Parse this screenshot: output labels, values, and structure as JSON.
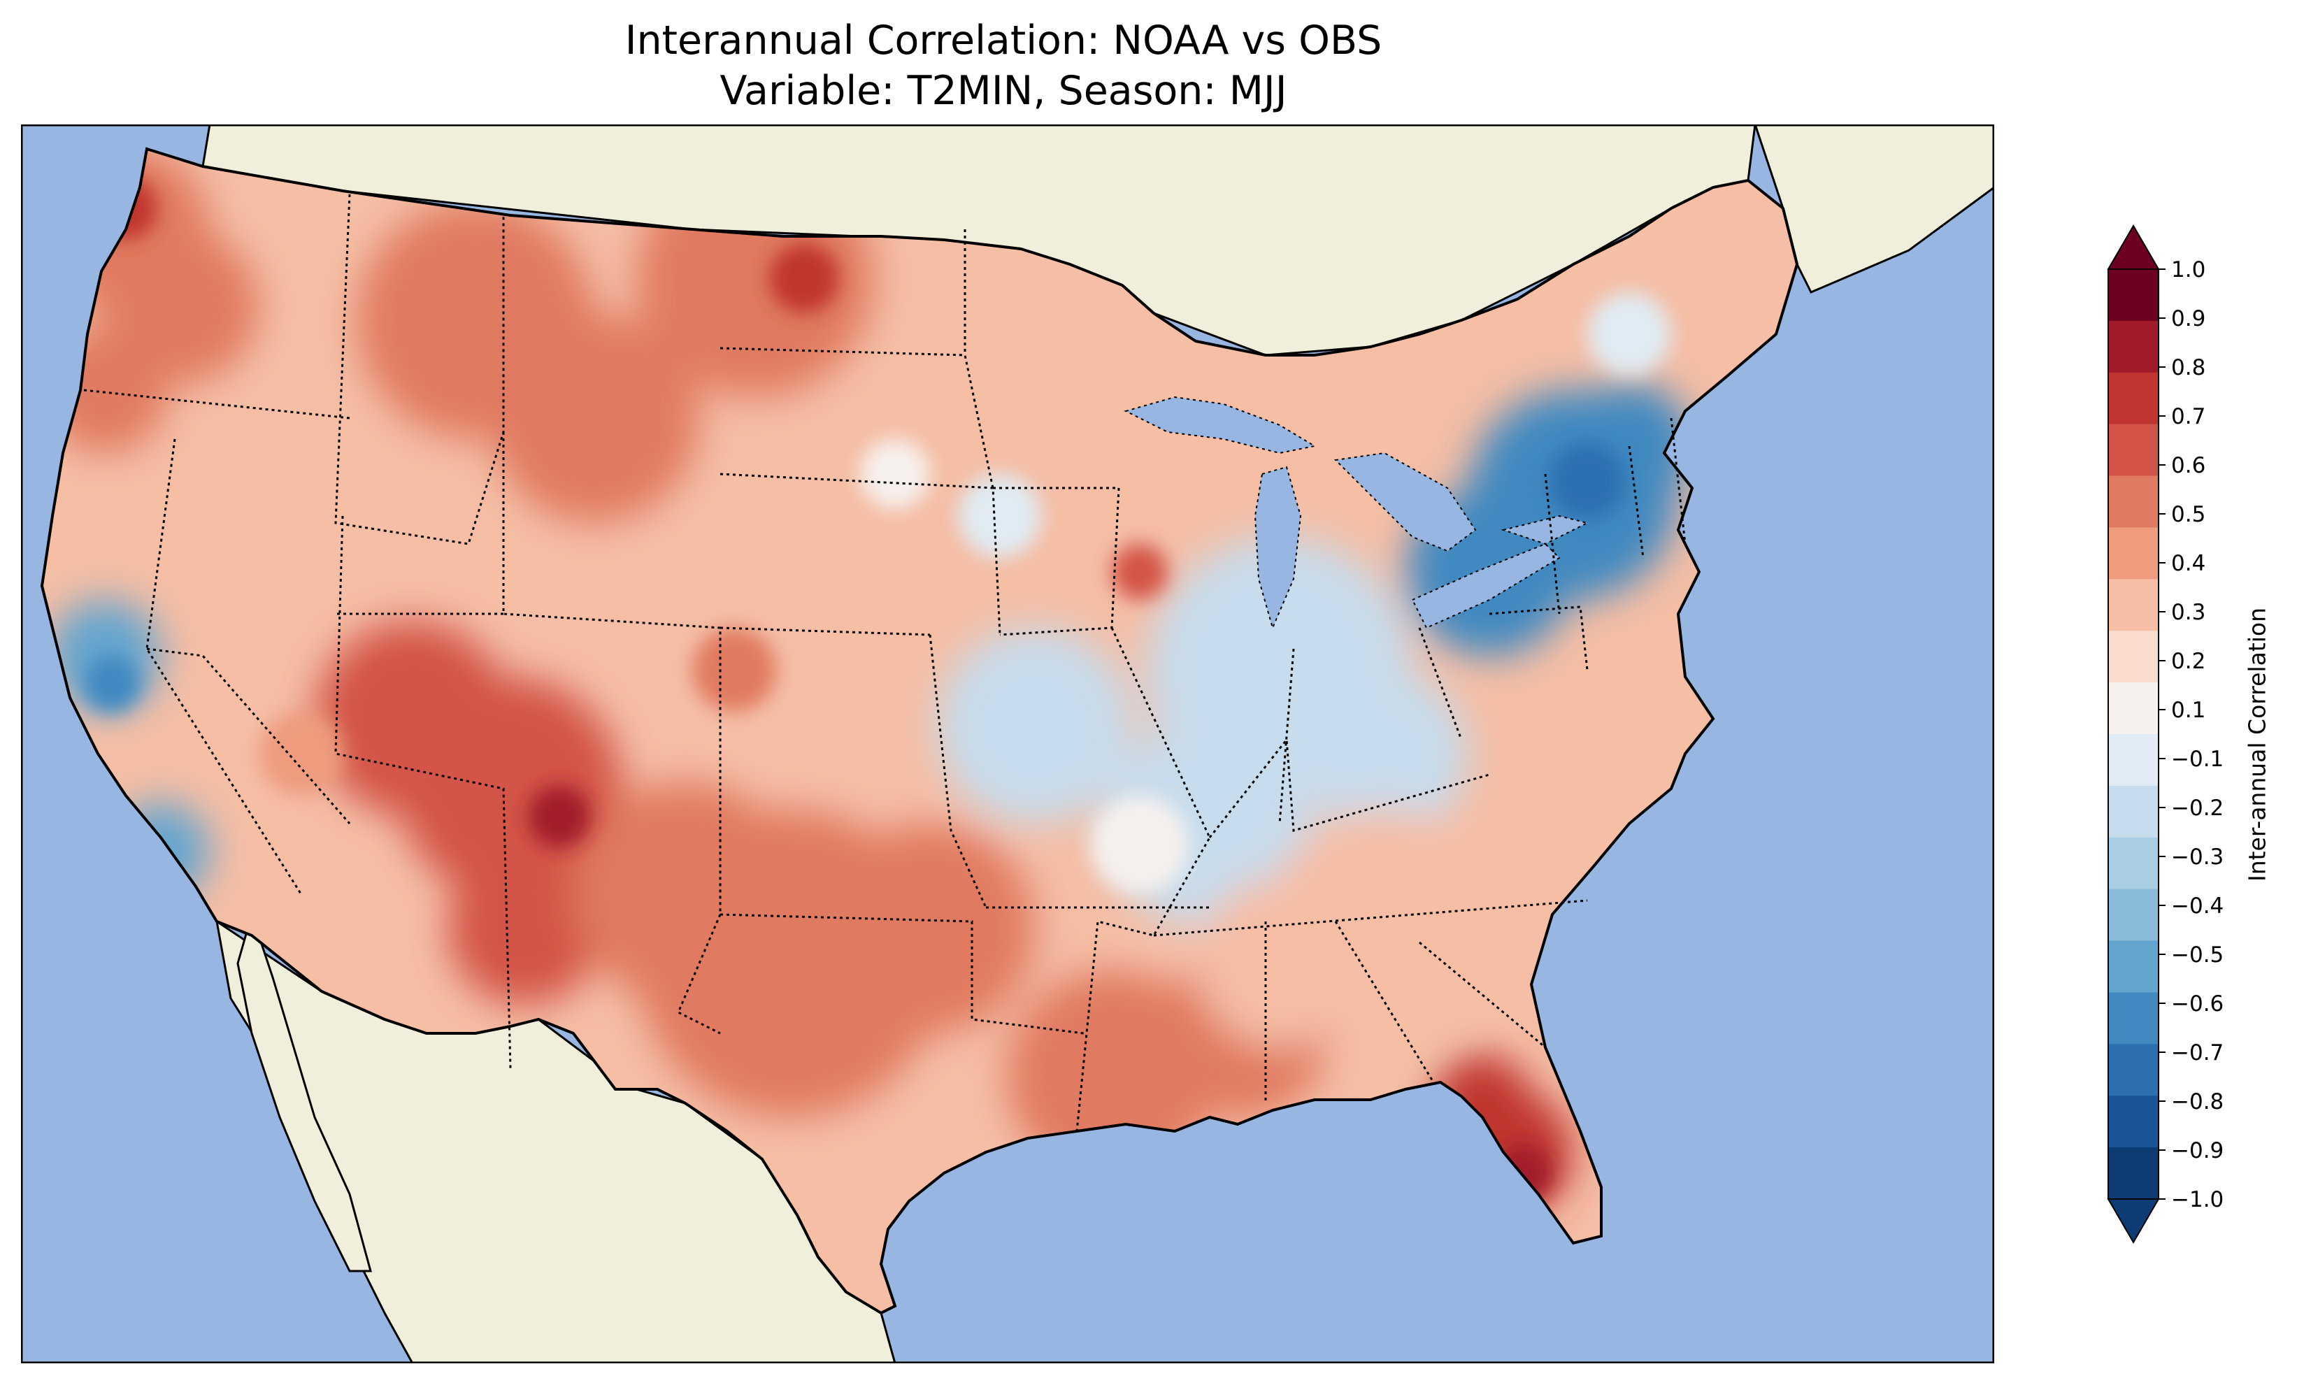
{
  "title": {
    "line1": "Interannual Correlation: NOAA vs OBS",
    "line2": "Variable: T2MIN, Season: MJJ"
  },
  "colors": {
    "ocean": "#97b6e1",
    "land": "#efefdb",
    "coast": "#000000"
  },
  "colorbar": {
    "label": "Inter-annual Correlation",
    "ticks": [
      "1.0",
      "0.9",
      "0.8",
      "0.7",
      "0.6",
      "0.5",
      "0.4",
      "0.3",
      "0.2",
      "0.1",
      "−0.1",
      "−0.2",
      "−0.3",
      "−0.4",
      "−0.5",
      "−0.6",
      "−0.7",
      "−0.8",
      "−0.9",
      "−1.0"
    ],
    "colors_top_to_bottom": [
      "#6b0020",
      "#a11a2c",
      "#c0352f",
      "#d35446",
      "#e07a61",
      "#ee9b7e",
      "#f5bea5",
      "#f9dccd",
      "#f6f1ee",
      "#e0ebf3",
      "#c7dcec",
      "#a9cde4",
      "#88bbda",
      "#63a5cf",
      "#4189c1",
      "#2c70b0",
      "#1a5598",
      "#0d3c74"
    ],
    "over_color": "#6b0020",
    "under_color": "#0d3c74"
  },
  "map": {
    "projection": "Lambert Conformal, CONUS",
    "field": "correlation",
    "dominant_sign": "positive over western, central and southern US; negative over northeast, Ohio Valley and central California",
    "regions": [
      {
        "name": "Pacific Northwest",
        "value": 0.5
      },
      {
        "name": "Northern Rockies/Montana",
        "value": 0.5
      },
      {
        "name": "Southwest/New Mexico",
        "value": 0.6
      },
      {
        "name": "Texas/Oklahoma",
        "value": 0.5
      },
      {
        "name": "Florida Peninsula",
        "value": 0.7
      },
      {
        "name": "Gulf Coast",
        "value": 0.5
      },
      {
        "name": "Great Lakes/Ohio Valley",
        "value": -0.2
      },
      {
        "name": "New York/Pennsylvania",
        "value": -0.6
      },
      {
        "name": "Central California",
        "value": -0.5
      },
      {
        "name": "Southeast",
        "value": 0.3
      }
    ]
  }
}
